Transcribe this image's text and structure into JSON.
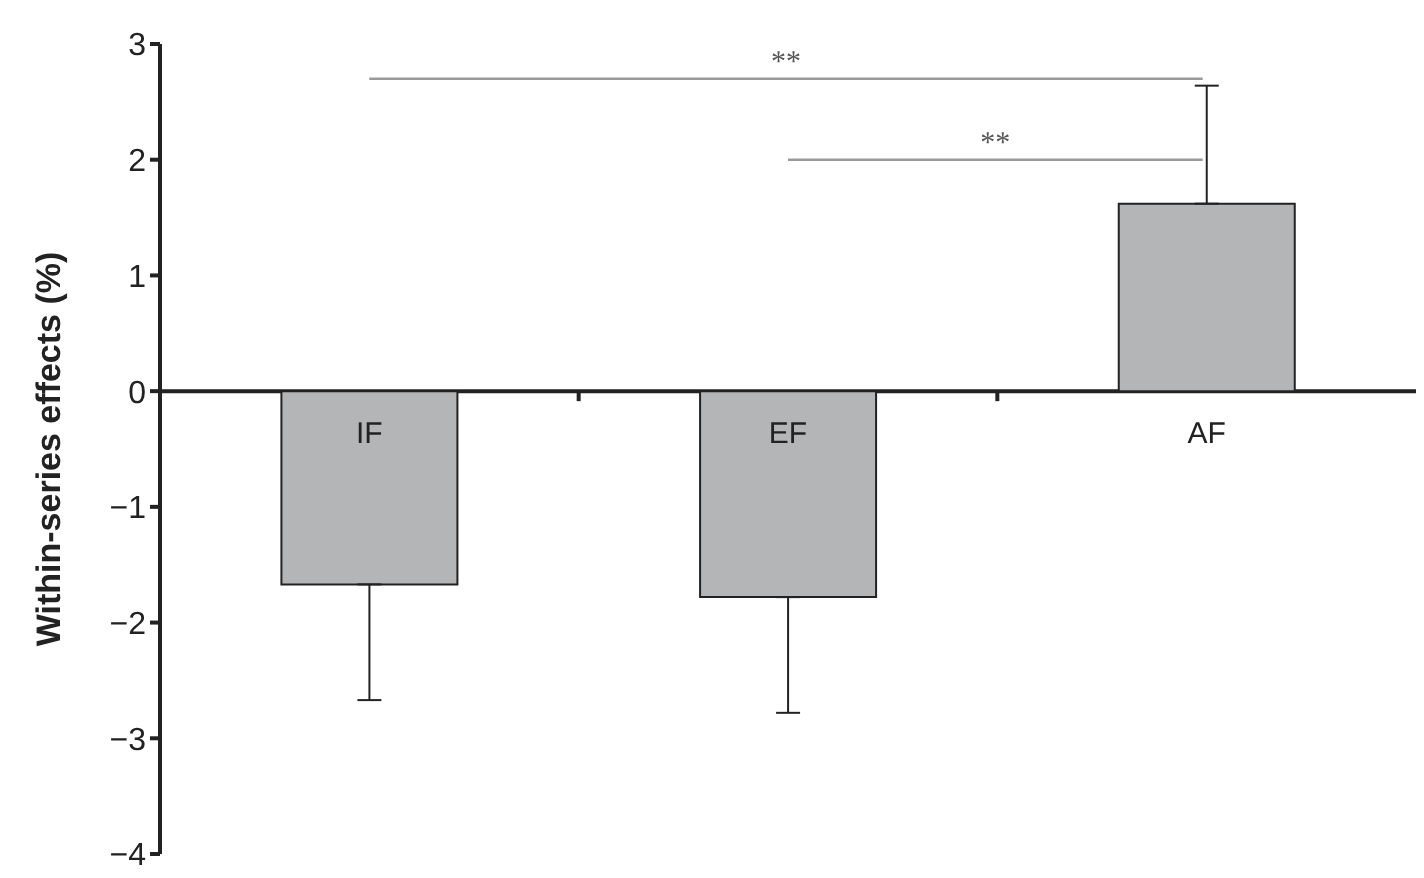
{
  "chart_data": {
    "type": "bar",
    "ylabel": "Within-series effects (%)",
    "categories": [
      "IF",
      "EF",
      "AF"
    ],
    "values": [
      -1.67,
      -1.78,
      1.62
    ],
    "errors": [
      [
        -2.67,
        -1.67
      ],
      [
        -2.78,
        -1.78
      ],
      [
        1.62,
        2.64
      ]
    ],
    "color": "#b3b5b7",
    "ylim": [
      -4,
      3
    ],
    "yticks": [
      -4,
      -3,
      -2,
      -1,
      0,
      1,
      2,
      3
    ],
    "annotations": [
      "**",
      "**"
    ]
  }
}
